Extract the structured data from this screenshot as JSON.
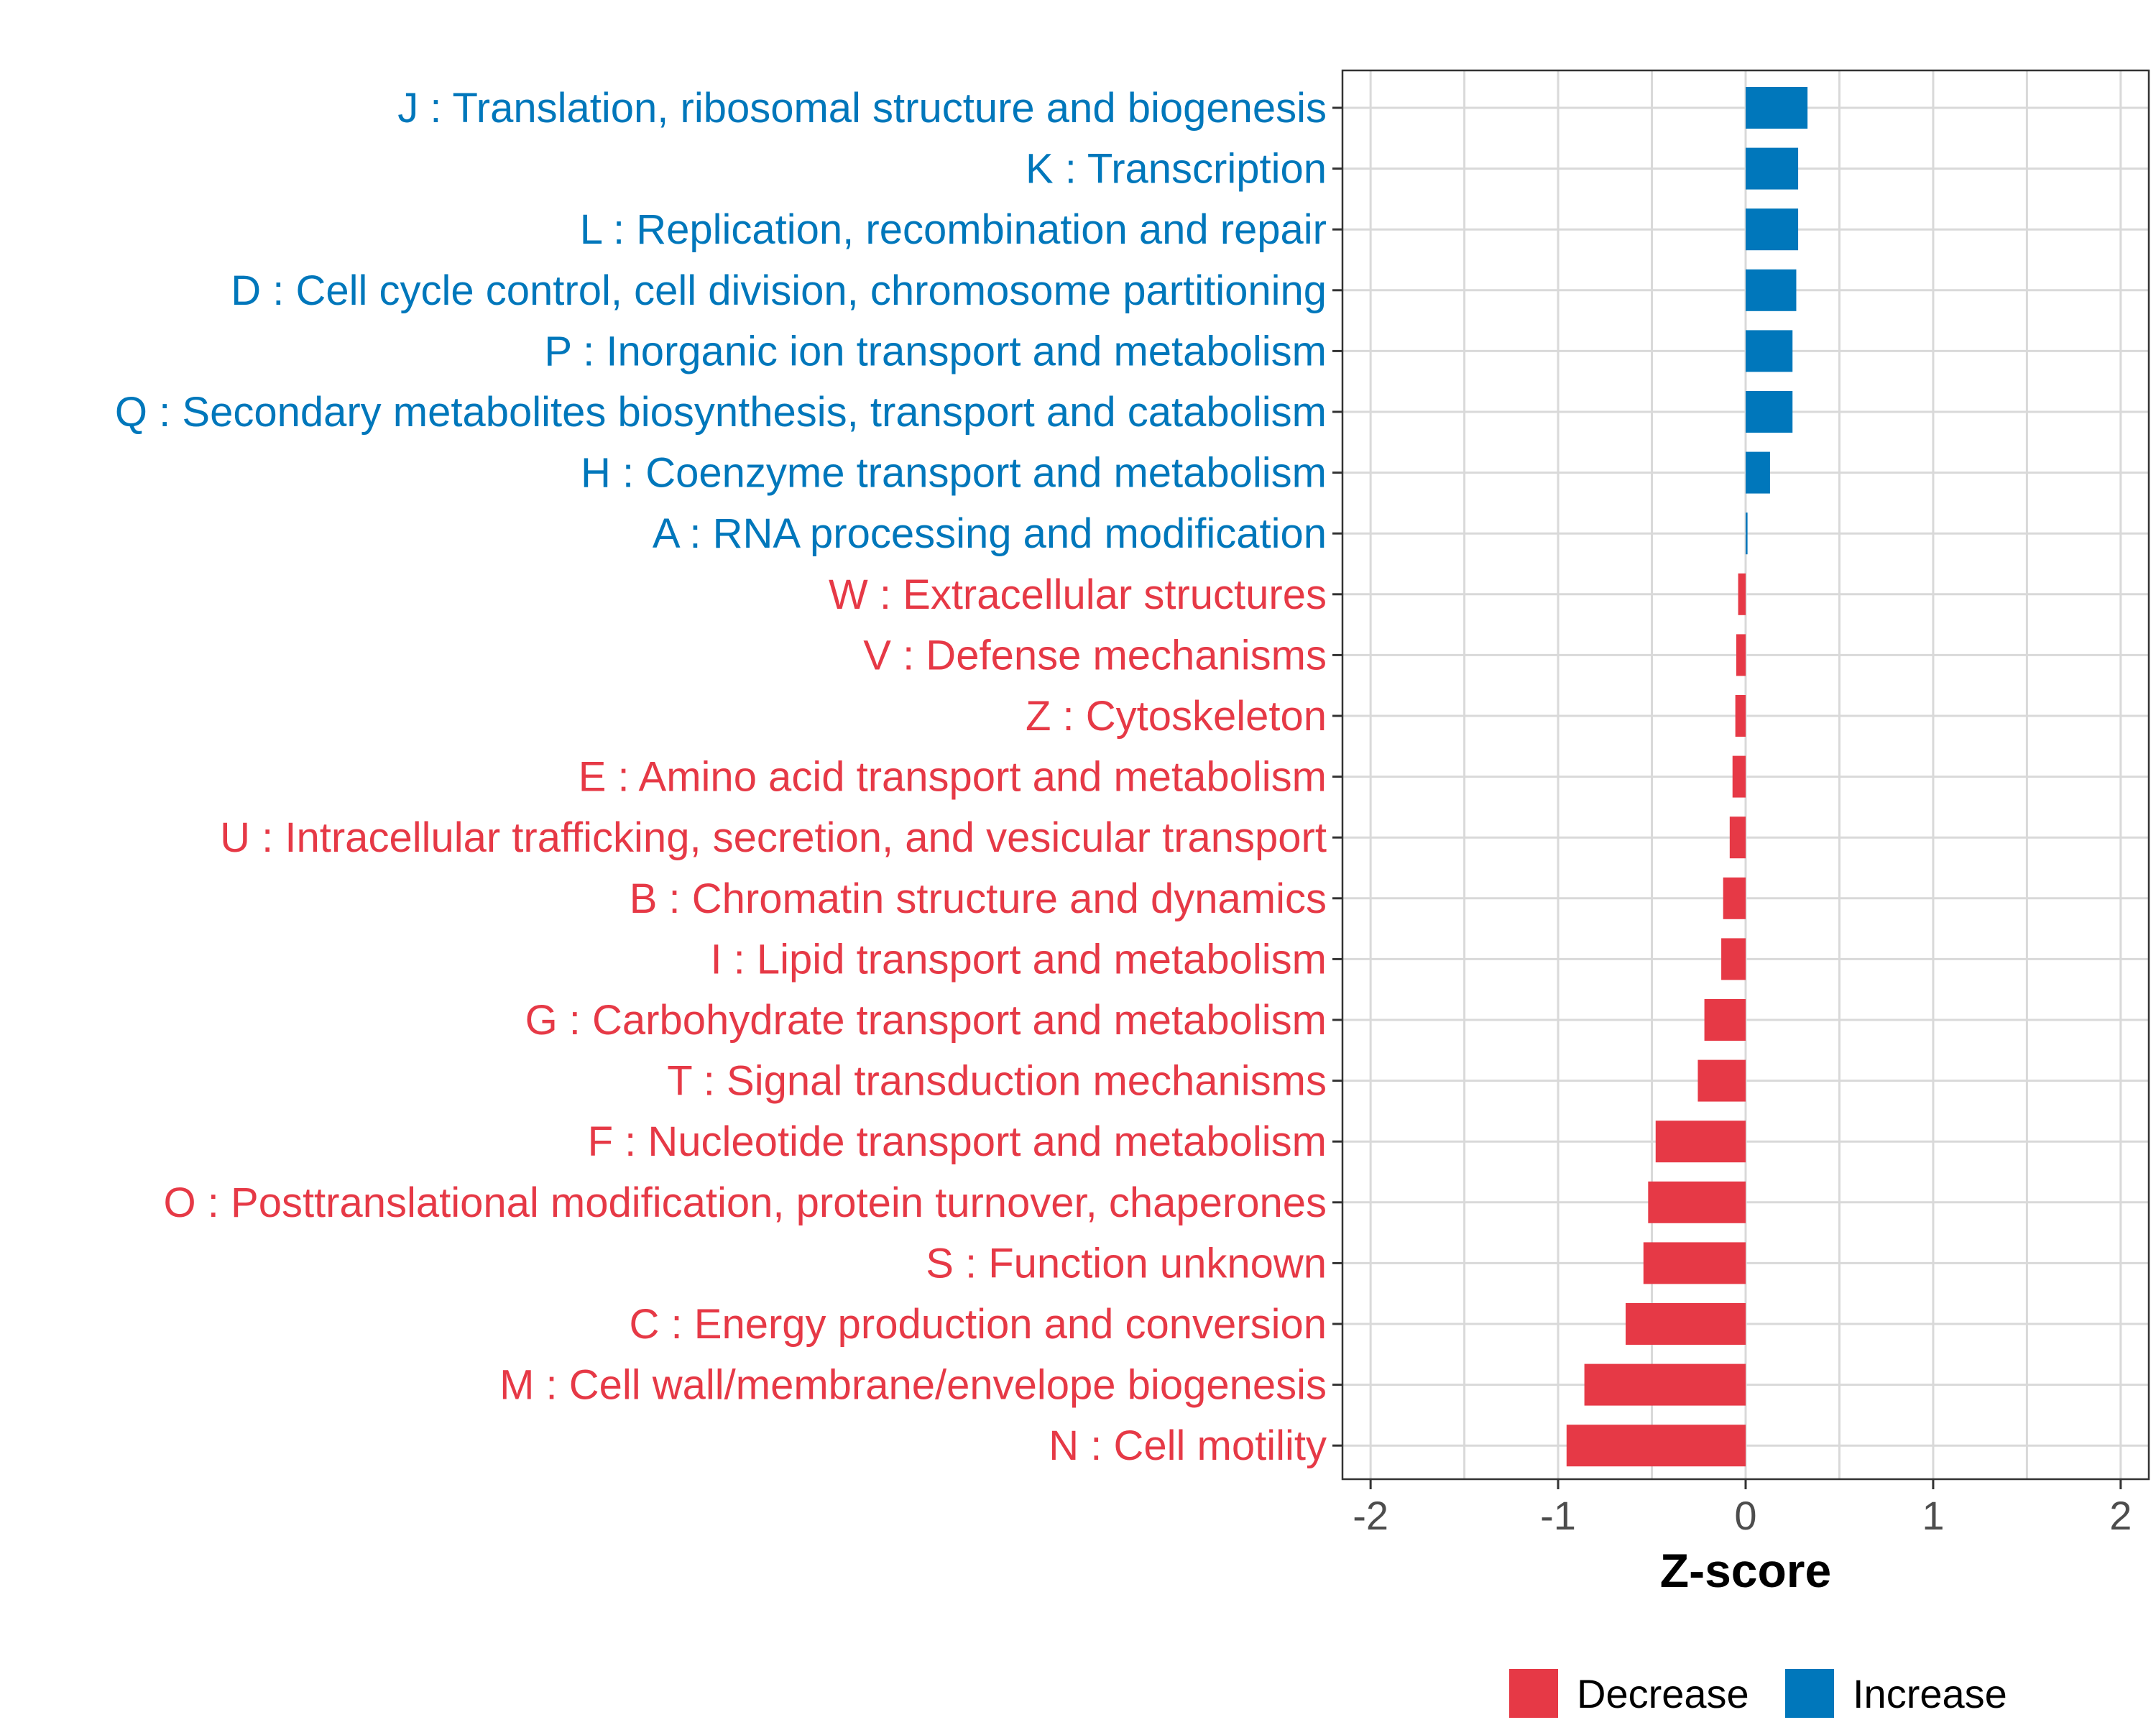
{
  "chart_data": {
    "type": "bar",
    "orientation": "horizontal",
    "title": "",
    "xlabel": "Z-score",
    "ylabel": "",
    "xlim": [
      -2.15,
      2.15
    ],
    "xticks": [
      -2,
      -1,
      0,
      1,
      2
    ],
    "grid": true,
    "legend_position": "bottom",
    "colors": {
      "Increase": "#0077bb",
      "Decrease": "#e63946"
    },
    "legend": [
      {
        "name": "Decrease",
        "color": "#e63946"
      },
      {
        "name": "Increase",
        "color": "#0077bb"
      }
    ],
    "categories": [
      "J : Translation, ribosomal structure and biogenesis",
      "K : Transcription",
      "L : Replication, recombination and repair",
      "D : Cell cycle control, cell division, chromosome partitioning",
      "P : Inorganic ion transport and metabolism",
      "Q : Secondary metabolites biosynthesis, transport and catabolism",
      "H : Coenzyme transport and metabolism",
      "A : RNA processing and modification",
      "W : Extracellular structures",
      "V : Defense mechanisms",
      "Z : Cytoskeleton",
      "E : Amino acid transport and metabolism",
      "U : Intracellular trafficking, secretion, and vesicular transport",
      "B : Chromatin structure and dynamics",
      "I : Lipid transport and metabolism",
      "G : Carbohydrate transport and metabolism",
      "T : Signal transduction mechanisms",
      "F : Nucleotide transport and metabolism",
      "O : Posttranslational modification, protein turnover, chaperones",
      "S : Function unknown",
      "C : Energy production and conversion",
      "M : Cell wall/membrane/envelope biogenesis",
      "N : Cell motility"
    ],
    "values": [
      0.33,
      0.28,
      0.28,
      0.27,
      0.25,
      0.25,
      0.13,
      0.01,
      -0.04,
      -0.05,
      -0.055,
      -0.07,
      -0.085,
      -0.12,
      -0.13,
      -0.22,
      -0.255,
      -0.48,
      -0.52,
      -0.545,
      -0.64,
      -0.86,
      -0.955
    ],
    "groups": [
      "Increase",
      "Increase",
      "Increase",
      "Increase",
      "Increase",
      "Increase",
      "Increase",
      "Increase",
      "Decrease",
      "Decrease",
      "Decrease",
      "Decrease",
      "Decrease",
      "Decrease",
      "Decrease",
      "Decrease",
      "Decrease",
      "Decrease",
      "Decrease",
      "Decrease",
      "Decrease",
      "Decrease",
      "Decrease"
    ]
  }
}
